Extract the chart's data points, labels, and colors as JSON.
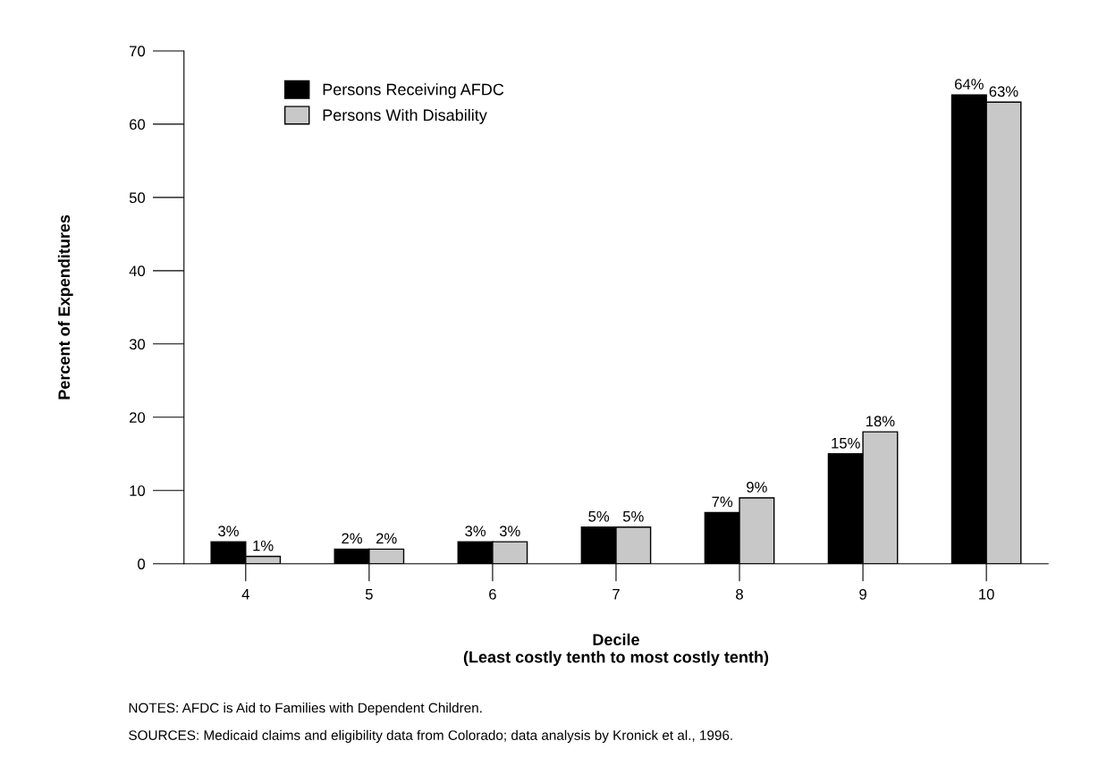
{
  "chart_data": {
    "type": "bar",
    "categories": [
      "4",
      "5",
      "6",
      "7",
      "8",
      "9",
      "10"
    ],
    "series": [
      {
        "name": "Persons Receiving AFDC",
        "color": "#000000",
        "values": [
          3,
          2,
          3,
          5,
          7,
          15,
          64
        ],
        "value_labels": [
          "3%",
          "2%",
          "3%",
          "5%",
          "7%",
          "15%",
          "64%"
        ]
      },
      {
        "name": "Persons With Disability",
        "color": "#c8c8c8",
        "values": [
          1,
          2,
          3,
          5,
          9,
          18,
          63
        ],
        "value_labels": [
          "1%",
          "2%",
          "3%",
          "5%",
          "9%",
          "18%",
          "63%"
        ]
      }
    ],
    "xlabel": "Decile\n(Least costly tenth to most costly tenth)",
    "ylabel": "Percent of Expenditures",
    "ylim": [
      0,
      70
    ],
    "yticks": [
      0,
      10,
      20,
      30,
      40,
      50,
      60,
      70
    ],
    "grid": false,
    "legend": "top left",
    "annotations": [
      "NOTES: AFDC is Aid to Families with Dependent Children.",
      "SOURCES: Medicaid claims and eligibility data from Colorado; data analysis by Kronick et al., 1996."
    ]
  }
}
